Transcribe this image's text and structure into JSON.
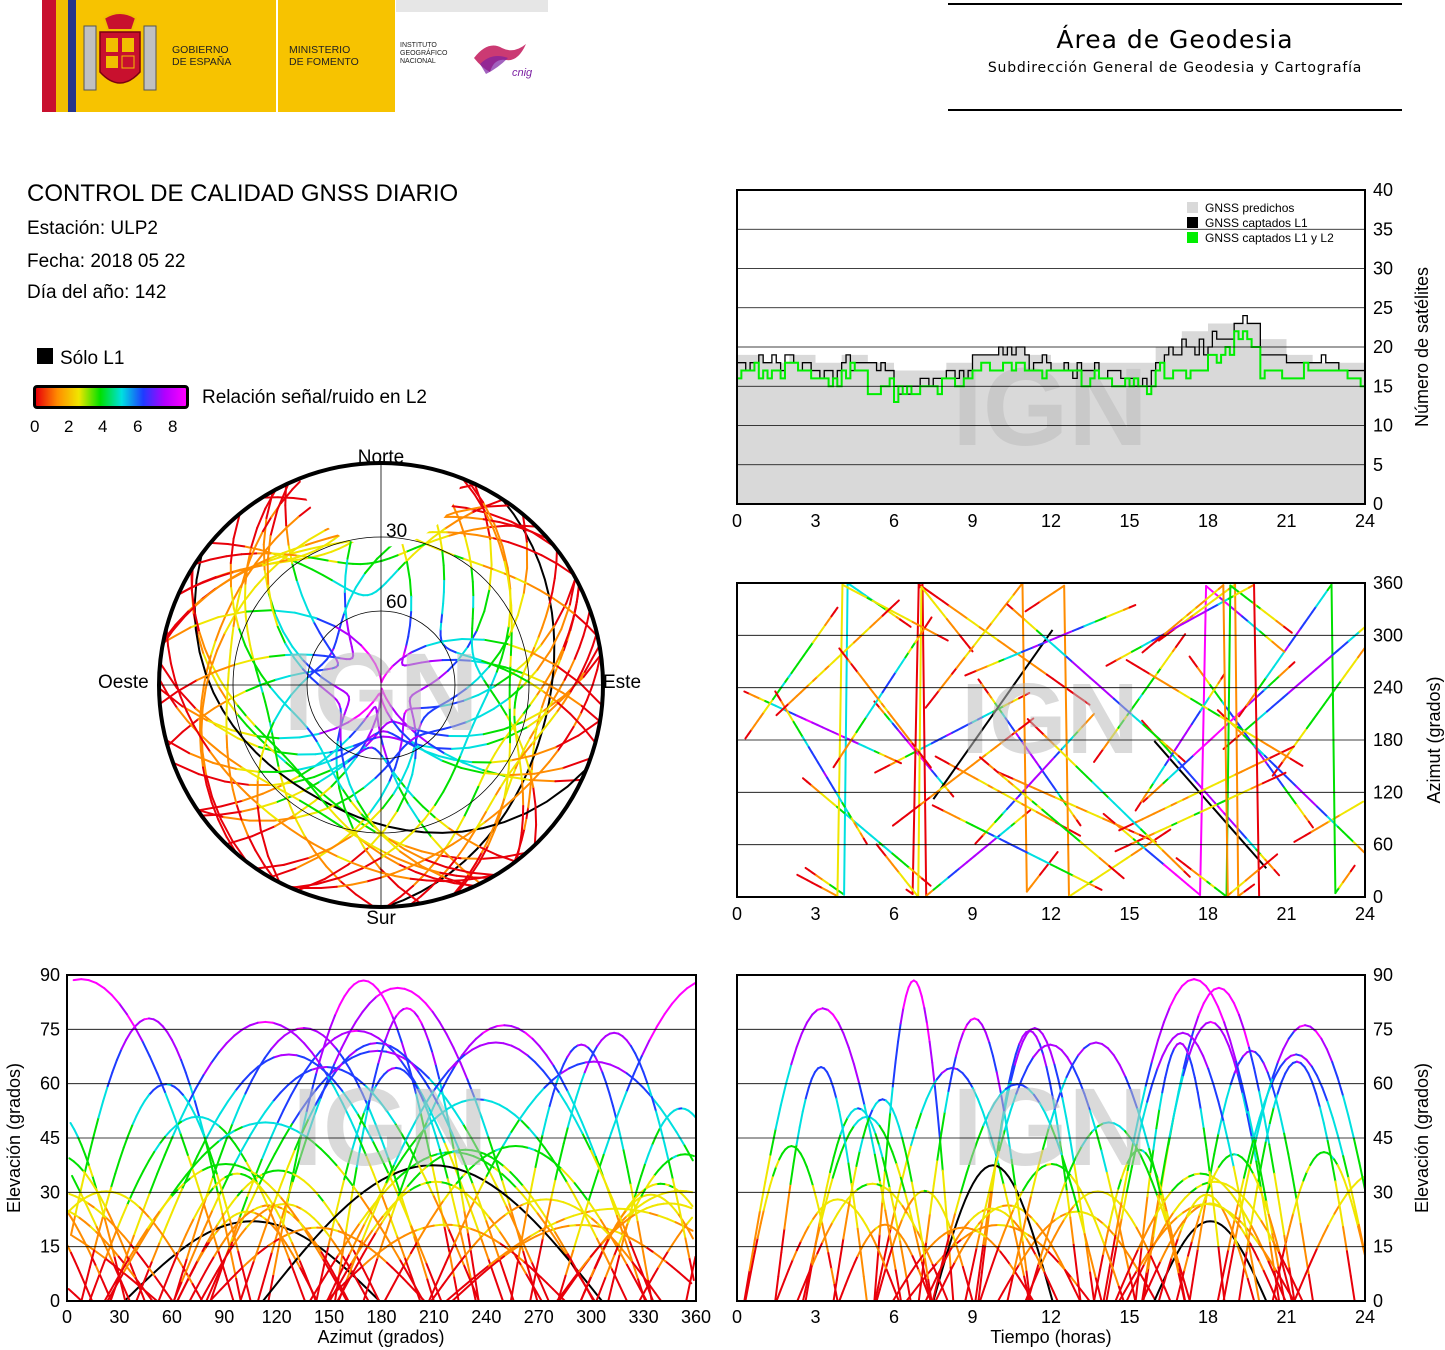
{
  "header": {
    "gov_line1": "GOBIERNO",
    "gov_line2": "DE ESPAÑA",
    "ministry_line1": "MINISTERIO",
    "ministry_line2": "DE FOMENTO",
    "institute_line1": "INSTITUTO",
    "institute_line2": "GEOGRÁFICO",
    "institute_line3": "NACIONAL",
    "cnig_label": "cnig",
    "area_title": "Área de Geodesia",
    "area_subtitle": "Subdirección General de Geodesia y Cartografía"
  },
  "info": {
    "title": "CONTROL DE CALIDAD GNSS DIARIO",
    "station": "Estación: ULP2",
    "date": "Fecha: 2018 05 22",
    "doy": "Día del año: 142"
  },
  "legend": {
    "l1_only": "Sólo L1",
    "snr_label": "Relación señal/ruido en L2",
    "snr_ticks": [
      "0",
      "2",
      "4",
      "6",
      "8"
    ]
  },
  "colors": {
    "predicted": "#d9d9d9",
    "l1": "#000000",
    "l1l2": "#00ee00",
    "snr_scale": [
      "#e8000a",
      "#ff8c00",
      "#f0e600",
      "#00e000",
      "#00e0e0",
      "#1e3cff",
      "#b000ff",
      "#ff00ff"
    ]
  },
  "watermark": "IGN",
  "chart_data": [
    {
      "type": "polar-skyplot",
      "labels": {
        "north": "Norte",
        "south": "Sur",
        "east": "Este",
        "west": "Oeste"
      },
      "rings": [
        "30",
        "60"
      ],
      "description_series": "Satellite tracks colored by L2 SNR"
    },
    {
      "type": "area",
      "ylabel": "Número de satélites",
      "ylim": [
        0,
        40
      ],
      "yticks": [
        "0",
        "5",
        "10",
        "15",
        "20",
        "25",
        "30",
        "35",
        "40"
      ],
      "xticks": [
        "0",
        "3",
        "6",
        "9",
        "12",
        "15",
        "18",
        "21",
        "24"
      ],
      "legend": [
        "GNSS predichos",
        "GNSS captados L1",
        "GNSS captados L1 y L2"
      ],
      "x": [
        0,
        1,
        2,
        3,
        4,
        5,
        6,
        7,
        8,
        9,
        10,
        11,
        12,
        13,
        14,
        15,
        16,
        17,
        18,
        19,
        20,
        21,
        22,
        23,
        24
      ],
      "series": [
        {
          "name": "GNSS predichos",
          "values": [
            19,
            18,
            19,
            18,
            19,
            18,
            17,
            17,
            18,
            19,
            20,
            19,
            18,
            18,
            18,
            18,
            20,
            22,
            23,
            23,
            21,
            19,
            18,
            18,
            18
          ]
        },
        {
          "name": "GNSS captados L1",
          "values": [
            18,
            18,
            18,
            17,
            18,
            17,
            15,
            16,
            17,
            19,
            20,
            18,
            17,
            17,
            17,
            16,
            19,
            20,
            21,
            23,
            19,
            18,
            18,
            17,
            17
          ]
        },
        {
          "name": "GNSS captados L1 y L2",
          "values": [
            17,
            17,
            17,
            16,
            17,
            15,
            14,
            15,
            16,
            17,
            18,
            17,
            17,
            16,
            16,
            15,
            17,
            17,
            19,
            21,
            17,
            17,
            17,
            16,
            16
          ]
        }
      ]
    },
    {
      "type": "scatter",
      "ylabel": "Azimut (grados)",
      "ylim": [
        0,
        360
      ],
      "yticks": [
        "0",
        "60",
        "120",
        "180",
        "240",
        "300",
        "360"
      ],
      "xticks": [
        "0",
        "3",
        "6",
        "9",
        "12",
        "15",
        "18",
        "21",
        "24"
      ]
    },
    {
      "type": "scatter",
      "xlabel": "Azimut (grados)",
      "ylabel": "Elevación (grados)",
      "xlim": [
        0,
        360
      ],
      "ylim": [
        0,
        90
      ],
      "xticks": [
        "0",
        "30",
        "60",
        "90",
        "120",
        "150",
        "180",
        "210",
        "240",
        "270",
        "300",
        "330",
        "360"
      ],
      "yticks": [
        "0",
        "15",
        "30",
        "45",
        "60",
        "75",
        "90"
      ]
    },
    {
      "type": "scatter",
      "xlabel": "Tiempo (horas)",
      "ylabel": "Elevación (grados)",
      "ylim": [
        0,
        90
      ],
      "yticks": [
        "0",
        "15",
        "30",
        "45",
        "60",
        "75",
        "90"
      ],
      "xticks": [
        "0",
        "3",
        "6",
        "9",
        "12",
        "15",
        "18",
        "21",
        "24"
      ]
    }
  ]
}
